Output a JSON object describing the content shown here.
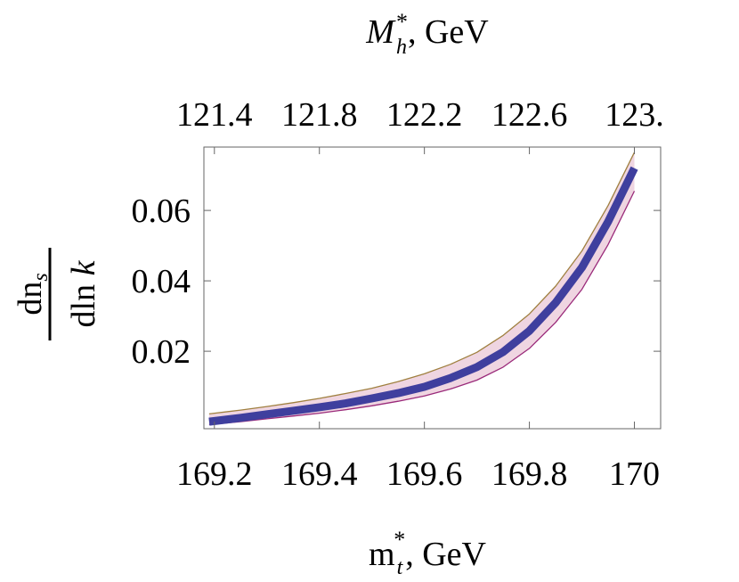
{
  "chart_data": {
    "type": "line",
    "top_axis_label": {
      "main": "M",
      "sub": "h",
      "sup": "*",
      "unit": ", GeV"
    },
    "bottom_axis_label": {
      "main": "m",
      "sub": "t",
      "sup": "*",
      "unit": ", GeV"
    },
    "y_axis_label": {
      "numerator_main": "dn",
      "numerator_sub": "s",
      "denominator_main": "dln ",
      "denominator_var": "k"
    },
    "xlim": [
      169.18,
      170.05
    ],
    "ylim": [
      -0.002,
      0.078
    ],
    "x_ticks": [
      169.2,
      169.4,
      169.6,
      169.8,
      170.0
    ],
    "x_tick_labels": [
      "169.2",
      "169.4",
      "169.6",
      "169.8",
      "170"
    ],
    "top_ticks": [
      169.2,
      169.4,
      169.6,
      169.8,
      170.0
    ],
    "top_tick_labels": [
      "121.4",
      "121.8",
      "122.2",
      "122.6",
      "123."
    ],
    "y_ticks": [
      0.02,
      0.04,
      0.06
    ],
    "y_tick_labels": [
      "0.02",
      "0.04",
      "0.06"
    ],
    "series": [
      {
        "name": "central",
        "color": "#3f3f9e",
        "x": [
          169.19,
          169.25,
          169.3,
          169.35,
          169.4,
          169.45,
          169.5,
          169.55,
          169.6,
          169.65,
          169.7,
          169.75,
          169.8,
          169.85,
          169.9,
          169.95,
          170.0
        ],
        "y": [
          0.0,
          0.0011,
          0.0021,
          0.0031,
          0.0041,
          0.0052,
          0.0066,
          0.0081,
          0.0099,
          0.0124,
          0.0155,
          0.0198,
          0.0258,
          0.0338,
          0.0438,
          0.0568,
          0.072
        ]
      },
      {
        "name": "upper",
        "color": "#a08040",
        "x": [
          169.19,
          169.25,
          169.3,
          169.35,
          169.4,
          169.45,
          169.5,
          169.55,
          169.6,
          169.65,
          169.7,
          169.75,
          169.8,
          169.85,
          169.9,
          169.95,
          170.0
        ],
        "y": [
          0.0022,
          0.0033,
          0.0043,
          0.0054,
          0.0066,
          0.008,
          0.0095,
          0.0114,
          0.0136,
          0.0163,
          0.0197,
          0.0245,
          0.0306,
          0.0385,
          0.0485,
          0.0614,
          0.0765
        ]
      },
      {
        "name": "lower",
        "color": "#9a2a7a",
        "x": [
          169.19,
          169.25,
          169.3,
          169.35,
          169.4,
          169.45,
          169.5,
          169.55,
          169.6,
          169.65,
          169.7,
          169.75,
          169.8,
          169.85,
          169.9,
          169.95,
          170.0
        ],
        "y": [
          -0.0008,
          0.0,
          0.0008,
          0.0016,
          0.0024,
          0.0034,
          0.0045,
          0.0058,
          0.0073,
          0.0093,
          0.0118,
          0.0155,
          0.0208,
          0.0282,
          0.0376,
          0.0503,
          0.0655
        ]
      }
    ],
    "band_fill": "#efd5e1"
  }
}
